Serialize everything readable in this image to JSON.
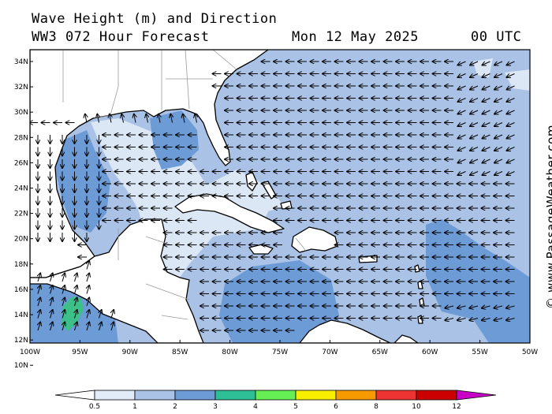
{
  "header": {
    "title": "Wave Height (m) and Direction",
    "model": "WW3 072 Hour Forecast",
    "date": "Mon 12 May 2025",
    "time": "00 UTC"
  },
  "credit": "© www.PassageWeather.com",
  "axes": {
    "lat_labels": [
      "34N",
      "32N",
      "30N",
      "28N",
      "26N",
      "24N",
      "22N",
      "20N",
      "18N",
      "16N",
      "14N",
      "12N",
      "10N"
    ],
    "lon_labels": [
      "100W",
      "95W",
      "90W",
      "85W",
      "80W",
      "75W",
      "70W",
      "65W",
      "60W",
      "55W",
      "50W"
    ]
  },
  "legend": {
    "labels": [
      "0.5",
      "1",
      "2",
      "3",
      "4",
      "5",
      "6",
      "8",
      "10",
      "12"
    ],
    "colors": [
      "#ffffff",
      "#e2ebf8",
      "#a9c2e6",
      "#6c9bd6",
      "#2fbf96",
      "#66ee55",
      "#f7ee00",
      "#f79a00",
      "#ee3333",
      "#cc0000",
      "#c800c8"
    ]
  },
  "colors": {
    "land": "#ffffff",
    "sea_calm": "#dce7f6",
    "sea_1_2": "#a9c2e6",
    "sea_2_3": "#6c9bd6",
    "sea_3_4": "#3dbf8a"
  }
}
